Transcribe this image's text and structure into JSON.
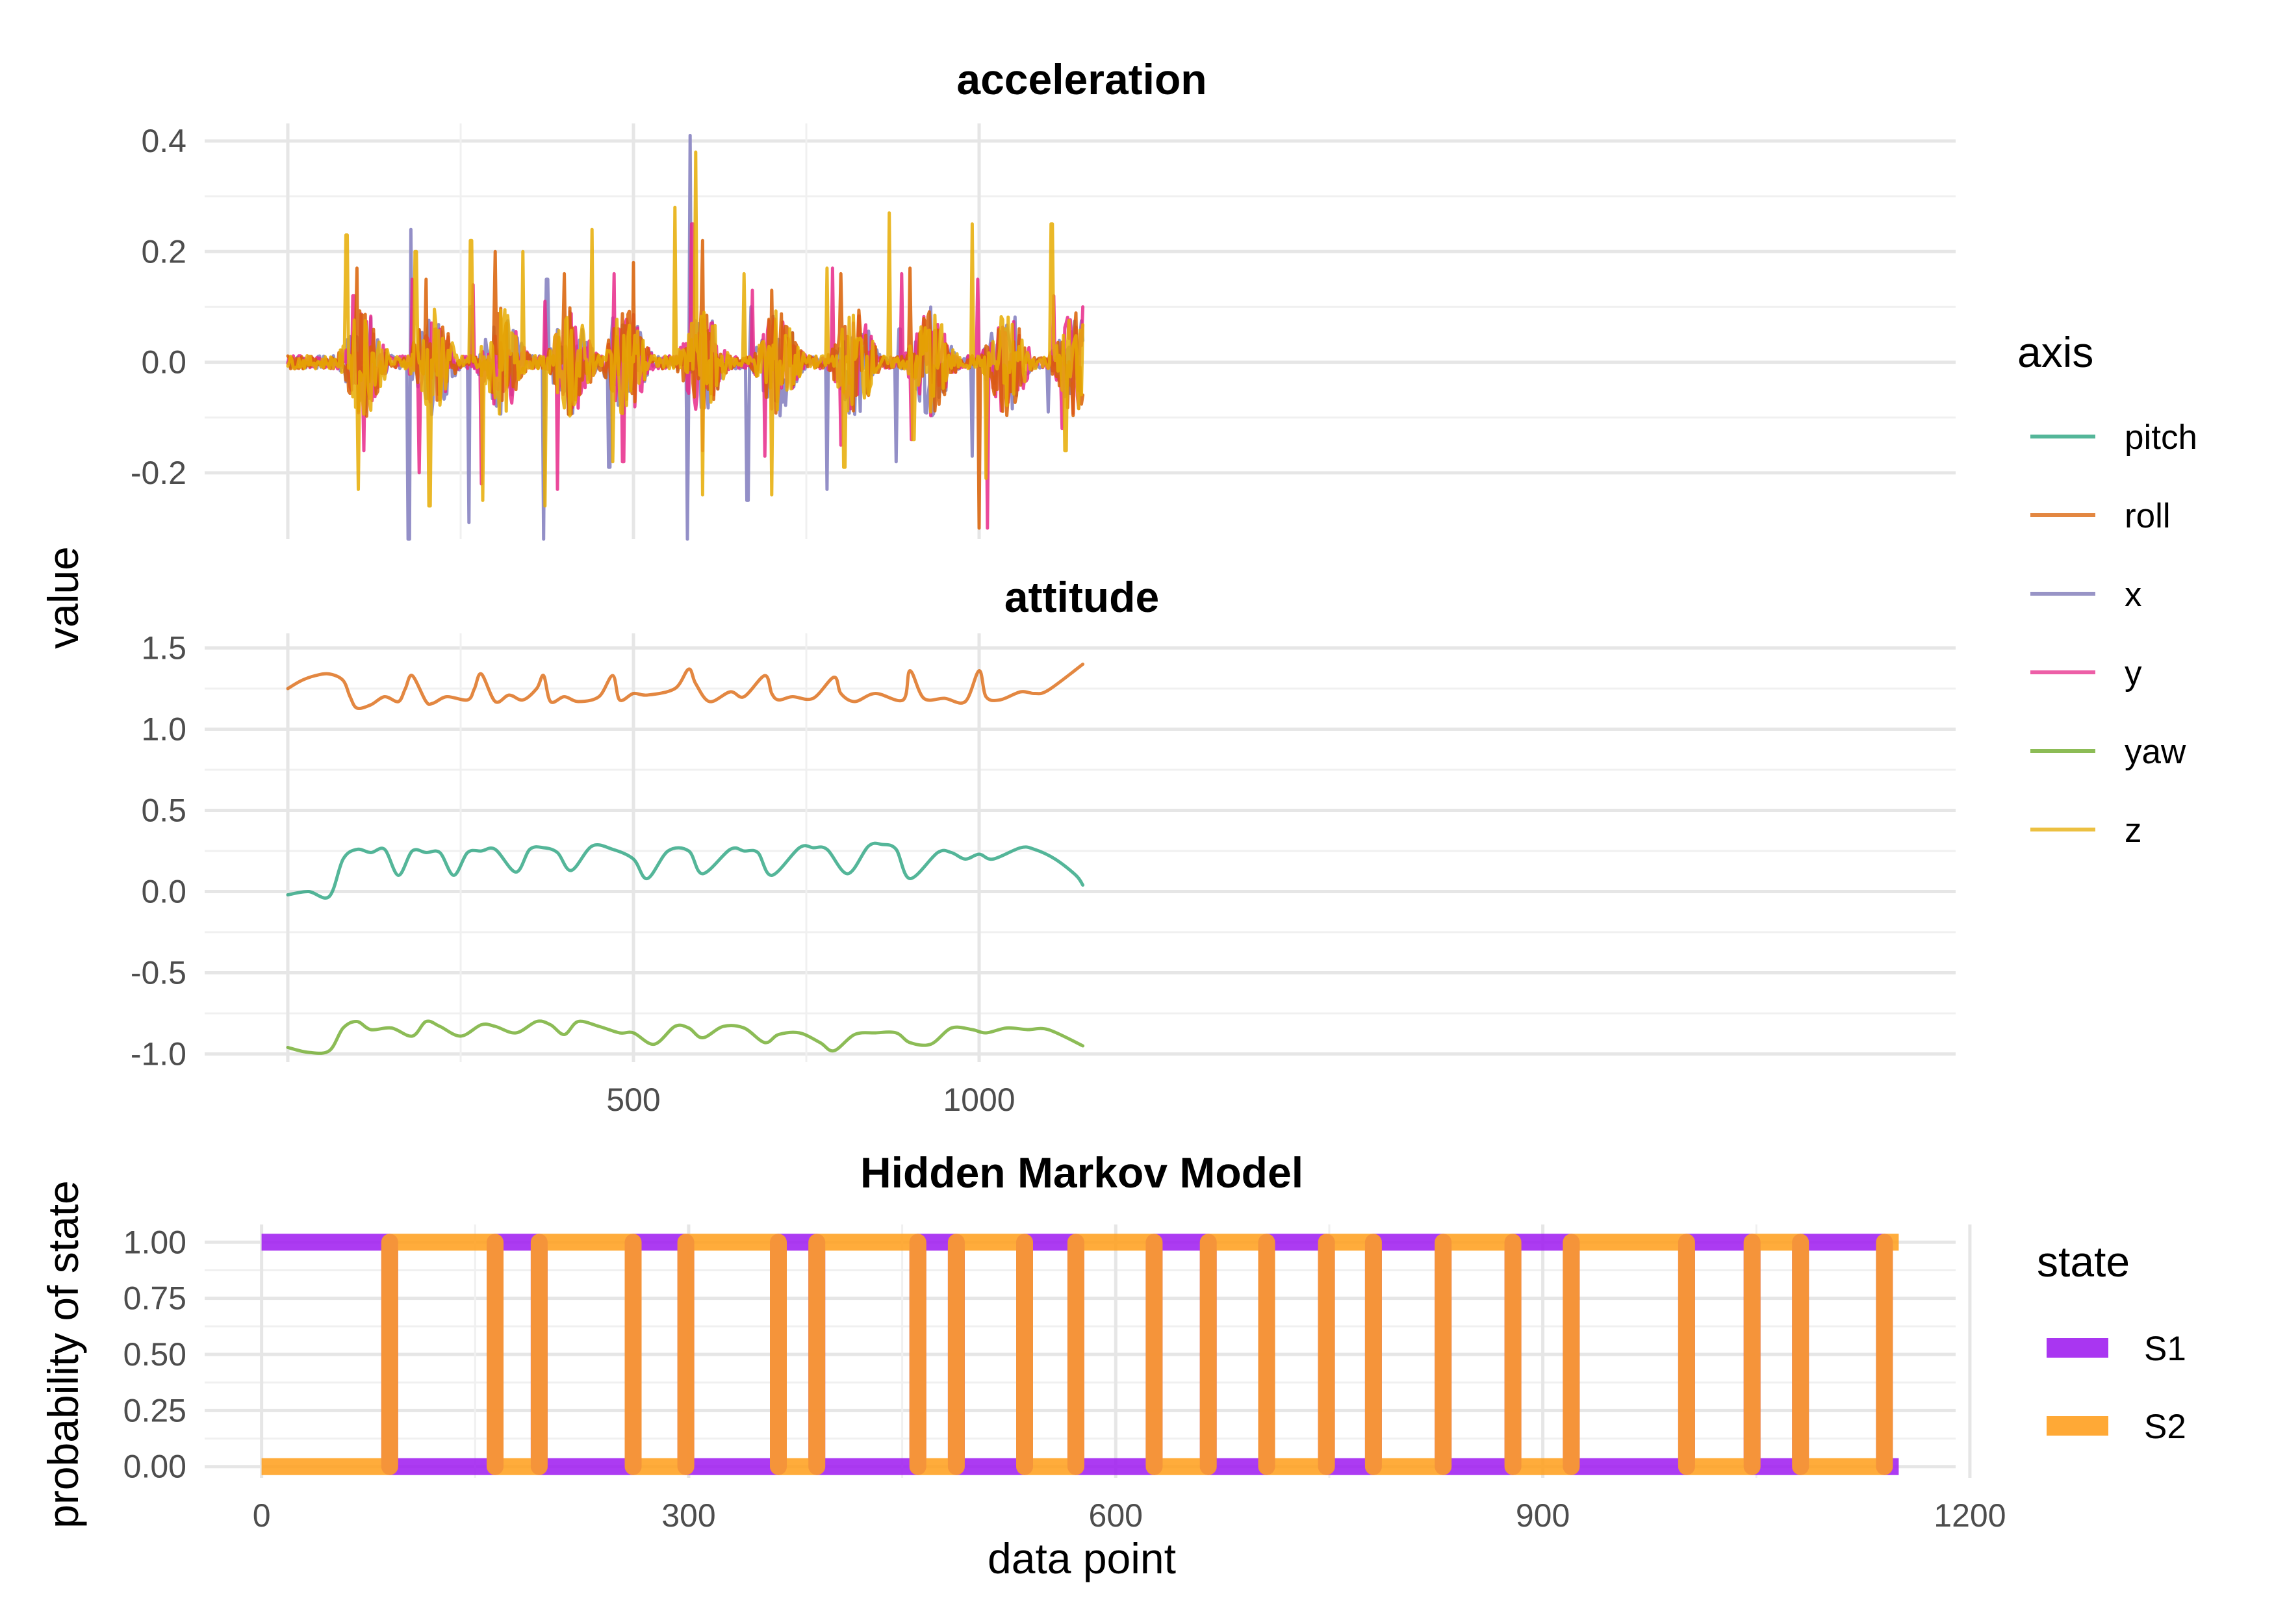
{
  "chart_data": [
    {
      "type": "line",
      "title": "acceleration",
      "xlabel": "",
      "ylabel": "value",
      "xlim": [
        0,
        1150
      ],
      "ylim": [
        -0.32,
        0.42
      ],
      "yticks": [
        -0.2,
        0.0,
        0.2,
        0.4
      ],
      "ytick_labels": [
        "-0.2",
        "0.0",
        "0.2",
        "0.4"
      ],
      "grid": true,
      "description_note_free": true,
      "bursts": [
        100,
        200,
        300,
        400,
        480,
        590,
        700,
        810,
        920,
        1030,
        1130
      ],
      "series": [
        {
          "name": "x",
          "color": "#8d89c4",
          "x": [
            0,
            90,
            100,
            175,
            178,
            200,
            262,
            265,
            300,
            370,
            375,
            400,
            465,
            470,
            500,
            578,
            582,
            600,
            665,
            670,
            700,
            780,
            785,
            810,
            880,
            885,
            920,
            990,
            995,
            1030,
            1100,
            1105,
            1150
          ],
          "y": [
            0.0,
            0.0,
            0.05,
            -0.33,
            0.24,
            0.0,
            -0.29,
            0.1,
            0.0,
            -0.32,
            0.15,
            0.0,
            -0.19,
            0.08,
            0.0,
            -0.34,
            0.41,
            0.0,
            -0.25,
            0.1,
            0.0,
            -0.23,
            0.05,
            0.0,
            -0.18,
            0.06,
            0.0,
            -0.17,
            0.05,
            0.0,
            -0.09,
            0.04,
            0.0
          ]
        },
        {
          "name": "y",
          "color": "#e7298a",
          "x": [
            0,
            95,
            110,
            180,
            190,
            205,
            268,
            280,
            305,
            372,
            390,
            410,
            472,
            485,
            505,
            585,
            600,
            615,
            672,
            690,
            705,
            788,
            800,
            815,
            888,
            902,
            925,
            998,
            1012,
            1035,
            1108,
            1120,
            1150
          ],
          "y": [
            0.0,
            0.12,
            -0.16,
            0.15,
            -0.2,
            0.0,
            0.14,
            -0.22,
            0.0,
            0.11,
            -0.23,
            0.0,
            0.16,
            -0.18,
            0.0,
            0.25,
            -0.16,
            0.0,
            0.13,
            -0.17,
            0.0,
            0.17,
            -0.15,
            0.0,
            0.16,
            -0.14,
            0.0,
            0.15,
            -0.3,
            0.0,
            0.12,
            -0.12,
            0.1
          ]
        },
        {
          "name": "z",
          "color": "#e6ab02",
          "x": [
            0,
            55,
            85,
            102,
            130,
            185,
            205,
            222,
            265,
            282,
            300,
            340,
            372,
            395,
            410,
            440,
            470,
            495,
            510,
            560,
            590,
            600,
            620,
            660,
            700,
            720,
            780,
            805,
            820,
            870,
            905,
            925,
            990,
            1010,
            1025,
            1105,
            1125,
            1150
          ],
          "y": [
            0.0,
            0.04,
            0.23,
            -0.23,
            0.0,
            0.2,
            -0.26,
            0.05,
            0.22,
            -0.25,
            0.0,
            0.2,
            -0.26,
            0.0,
            0.02,
            0.24,
            -0.18,
            0.0,
            0.0,
            0.28,
            0.38,
            -0.24,
            0.0,
            0.16,
            -0.24,
            0.0,
            0.17,
            -0.19,
            0.0,
            0.27,
            -0.14,
            0.0,
            0.25,
            -0.21,
            0.0,
            0.25,
            -0.16,
            -0.05
          ]
        },
        {
          "name": "roll",
          "color": "#d95f02",
          "x": [
            0,
            100,
            200,
            300,
            400,
            500,
            600,
            700,
            800,
            900,
            1000,
            1150
          ],
          "y": [
            0.0,
            0.17,
            0.15,
            0.2,
            0.16,
            0.18,
            0.22,
            0.13,
            0.16,
            0.17,
            -0.3,
            0.0
          ]
        }
      ]
    },
    {
      "type": "line",
      "title": "attitude",
      "xlabel": "",
      "ylabel": "value",
      "xlim": [
        0,
        1150
      ],
      "ylim": [
        -1.05,
        1.55
      ],
      "yticks": [
        -1.0,
        -0.5,
        0.0,
        0.5,
        1.0,
        1.5
      ],
      "ytick_labels": [
        "-1.0",
        "-0.5",
        "0.0",
        "0.5",
        "1.0",
        "1.5"
      ],
      "xticks": [
        500,
        1000
      ],
      "xtick_labels": [
        "500",
        "1000"
      ],
      "grid": true,
      "series": [
        {
          "name": "roll",
          "color": "#d95f02",
          "x": [
            0,
            20,
            40,
            60,
            80,
            90,
            100,
            120,
            140,
            160,
            170,
            180,
            200,
            210,
            230,
            260,
            270,
            280,
            300,
            320,
            340,
            360,
            370,
            380,
            400,
            420,
            450,
            470,
            480,
            500,
            520,
            560,
            580,
            590,
            610,
            640,
            660,
            690,
            700,
            710,
            730,
            760,
            790,
            800,
            820,
            850,
            890,
            900,
            920,
            950,
            980,
            1000,
            1010,
            1030,
            1060,
            1080,
            1100,
            1150
          ],
          "y": [
            1.25,
            1.3,
            1.33,
            1.34,
            1.3,
            1.2,
            1.13,
            1.15,
            1.2,
            1.17,
            1.25,
            1.33,
            1.17,
            1.16,
            1.2,
            1.18,
            1.25,
            1.34,
            1.17,
            1.21,
            1.18,
            1.25,
            1.33,
            1.17,
            1.2,
            1.17,
            1.2,
            1.33,
            1.18,
            1.22,
            1.21,
            1.25,
            1.37,
            1.28,
            1.17,
            1.23,
            1.2,
            1.33,
            1.22,
            1.18,
            1.2,
            1.19,
            1.32,
            1.22,
            1.17,
            1.22,
            1.18,
            1.36,
            1.19,
            1.19,
            1.17,
            1.36,
            1.2,
            1.18,
            1.23,
            1.22,
            1.24,
            1.4
          ]
        },
        {
          "name": "pitch",
          "color": "#1b9e77",
          "x": [
            0,
            30,
            60,
            80,
            100,
            120,
            140,
            160,
            180,
            200,
            220,
            240,
            260,
            280,
            300,
            330,
            350,
            370,
            390,
            410,
            440,
            470,
            500,
            520,
            550,
            580,
            600,
            640,
            660,
            680,
            700,
            740,
            760,
            780,
            810,
            840,
            860,
            880,
            900,
            940,
            960,
            980,
            1000,
            1020,
            1060,
            1080,
            1110,
            1140,
            1150
          ],
          "y": [
            -0.02,
            0.0,
            -0.03,
            0.2,
            0.26,
            0.24,
            0.26,
            0.1,
            0.25,
            0.24,
            0.24,
            0.1,
            0.24,
            0.25,
            0.26,
            0.12,
            0.26,
            0.27,
            0.24,
            0.13,
            0.28,
            0.26,
            0.2,
            0.08,
            0.25,
            0.25,
            0.11,
            0.26,
            0.25,
            0.24,
            0.1,
            0.27,
            0.27,
            0.26,
            0.11,
            0.28,
            0.29,
            0.26,
            0.08,
            0.24,
            0.24,
            0.2,
            0.23,
            0.2,
            0.27,
            0.26,
            0.2,
            0.1,
            0.04
          ]
        },
        {
          "name": "yaw",
          "color": "#66a61e",
          "x": [
            0,
            30,
            60,
            80,
            100,
            120,
            150,
            180,
            200,
            220,
            250,
            280,
            300,
            330,
            360,
            380,
            400,
            420,
            450,
            480,
            500,
            530,
            560,
            580,
            600,
            630,
            660,
            690,
            710,
            740,
            770,
            790,
            820,
            850,
            880,
            900,
            930,
            960,
            990,
            1010,
            1040,
            1070,
            1100,
            1150
          ],
          "y": [
            -0.96,
            -0.99,
            -0.98,
            -0.84,
            -0.8,
            -0.85,
            -0.84,
            -0.89,
            -0.8,
            -0.83,
            -0.89,
            -0.82,
            -0.83,
            -0.87,
            -0.8,
            -0.82,
            -0.88,
            -0.8,
            -0.83,
            -0.87,
            -0.87,
            -0.94,
            -0.83,
            -0.84,
            -0.9,
            -0.83,
            -0.84,
            -0.93,
            -0.88,
            -0.87,
            -0.93,
            -0.98,
            -0.88,
            -0.87,
            -0.87,
            -0.93,
            -0.94,
            -0.84,
            -0.85,
            -0.87,
            -0.84,
            -0.85,
            -0.85,
            -0.95
          ]
        }
      ]
    },
    {
      "type": "line",
      "title": "Hidden Markov Model",
      "xlabel": "data point",
      "ylabel": "probability of state",
      "xlim": [
        -40,
        1190
      ],
      "ylim": [
        -0.05,
        1.05
      ],
      "xticks": [
        0,
        300,
        600,
        900,
        1200
      ],
      "xtick_labels": [
        "0",
        "300",
        "600",
        "900",
        "1200"
      ],
      "yticks": [
        0.0,
        0.25,
        0.5,
        0.75,
        1.0
      ],
      "ytick_labels": [
        "0.00",
        "0.25",
        "0.50",
        "0.75",
        "1.00"
      ],
      "grid": true,
      "legend_placement": "right",
      "s2_high_intervals": [
        [
          90,
          163
        ],
        [
          195,
          260
        ],
        [
          298,
          362
        ],
        [
          390,
          460
        ],
        [
          488,
          535
        ],
        [
          572,
          626
        ],
        [
          665,
          705
        ],
        [
          748,
          780
        ],
        [
          830,
          878
        ],
        [
          920,
          1000
        ],
        [
          1047,
          1080
        ],
        [
          1140,
          1150
        ]
      ],
      "series": [
        {
          "name": "S1",
          "color": "#a020f0"
        },
        {
          "name": "S2",
          "color": "#ffa020"
        }
      ]
    }
  ],
  "legends": {
    "axis": {
      "title": "axis",
      "items": [
        {
          "label": "pitch",
          "color": "#1b9e77"
        },
        {
          "label": "roll",
          "color": "#d95f02"
        },
        {
          "label": "x",
          "color": "#7570b3"
        },
        {
          "label": "y",
          "color": "#e7298a"
        },
        {
          "label": "yaw",
          "color": "#66a61e"
        },
        {
          "label": "z",
          "color": "#e6ab02"
        }
      ]
    },
    "state": {
      "title": "state",
      "items": [
        {
          "label": "S1",
          "color": "#a020f0"
        },
        {
          "label": "S2",
          "color": "#ffa020"
        }
      ]
    }
  },
  "labels": {
    "value_ylabel": "value",
    "hmm_ylabel": "probability of state",
    "hmm_xlabel": "data point"
  }
}
